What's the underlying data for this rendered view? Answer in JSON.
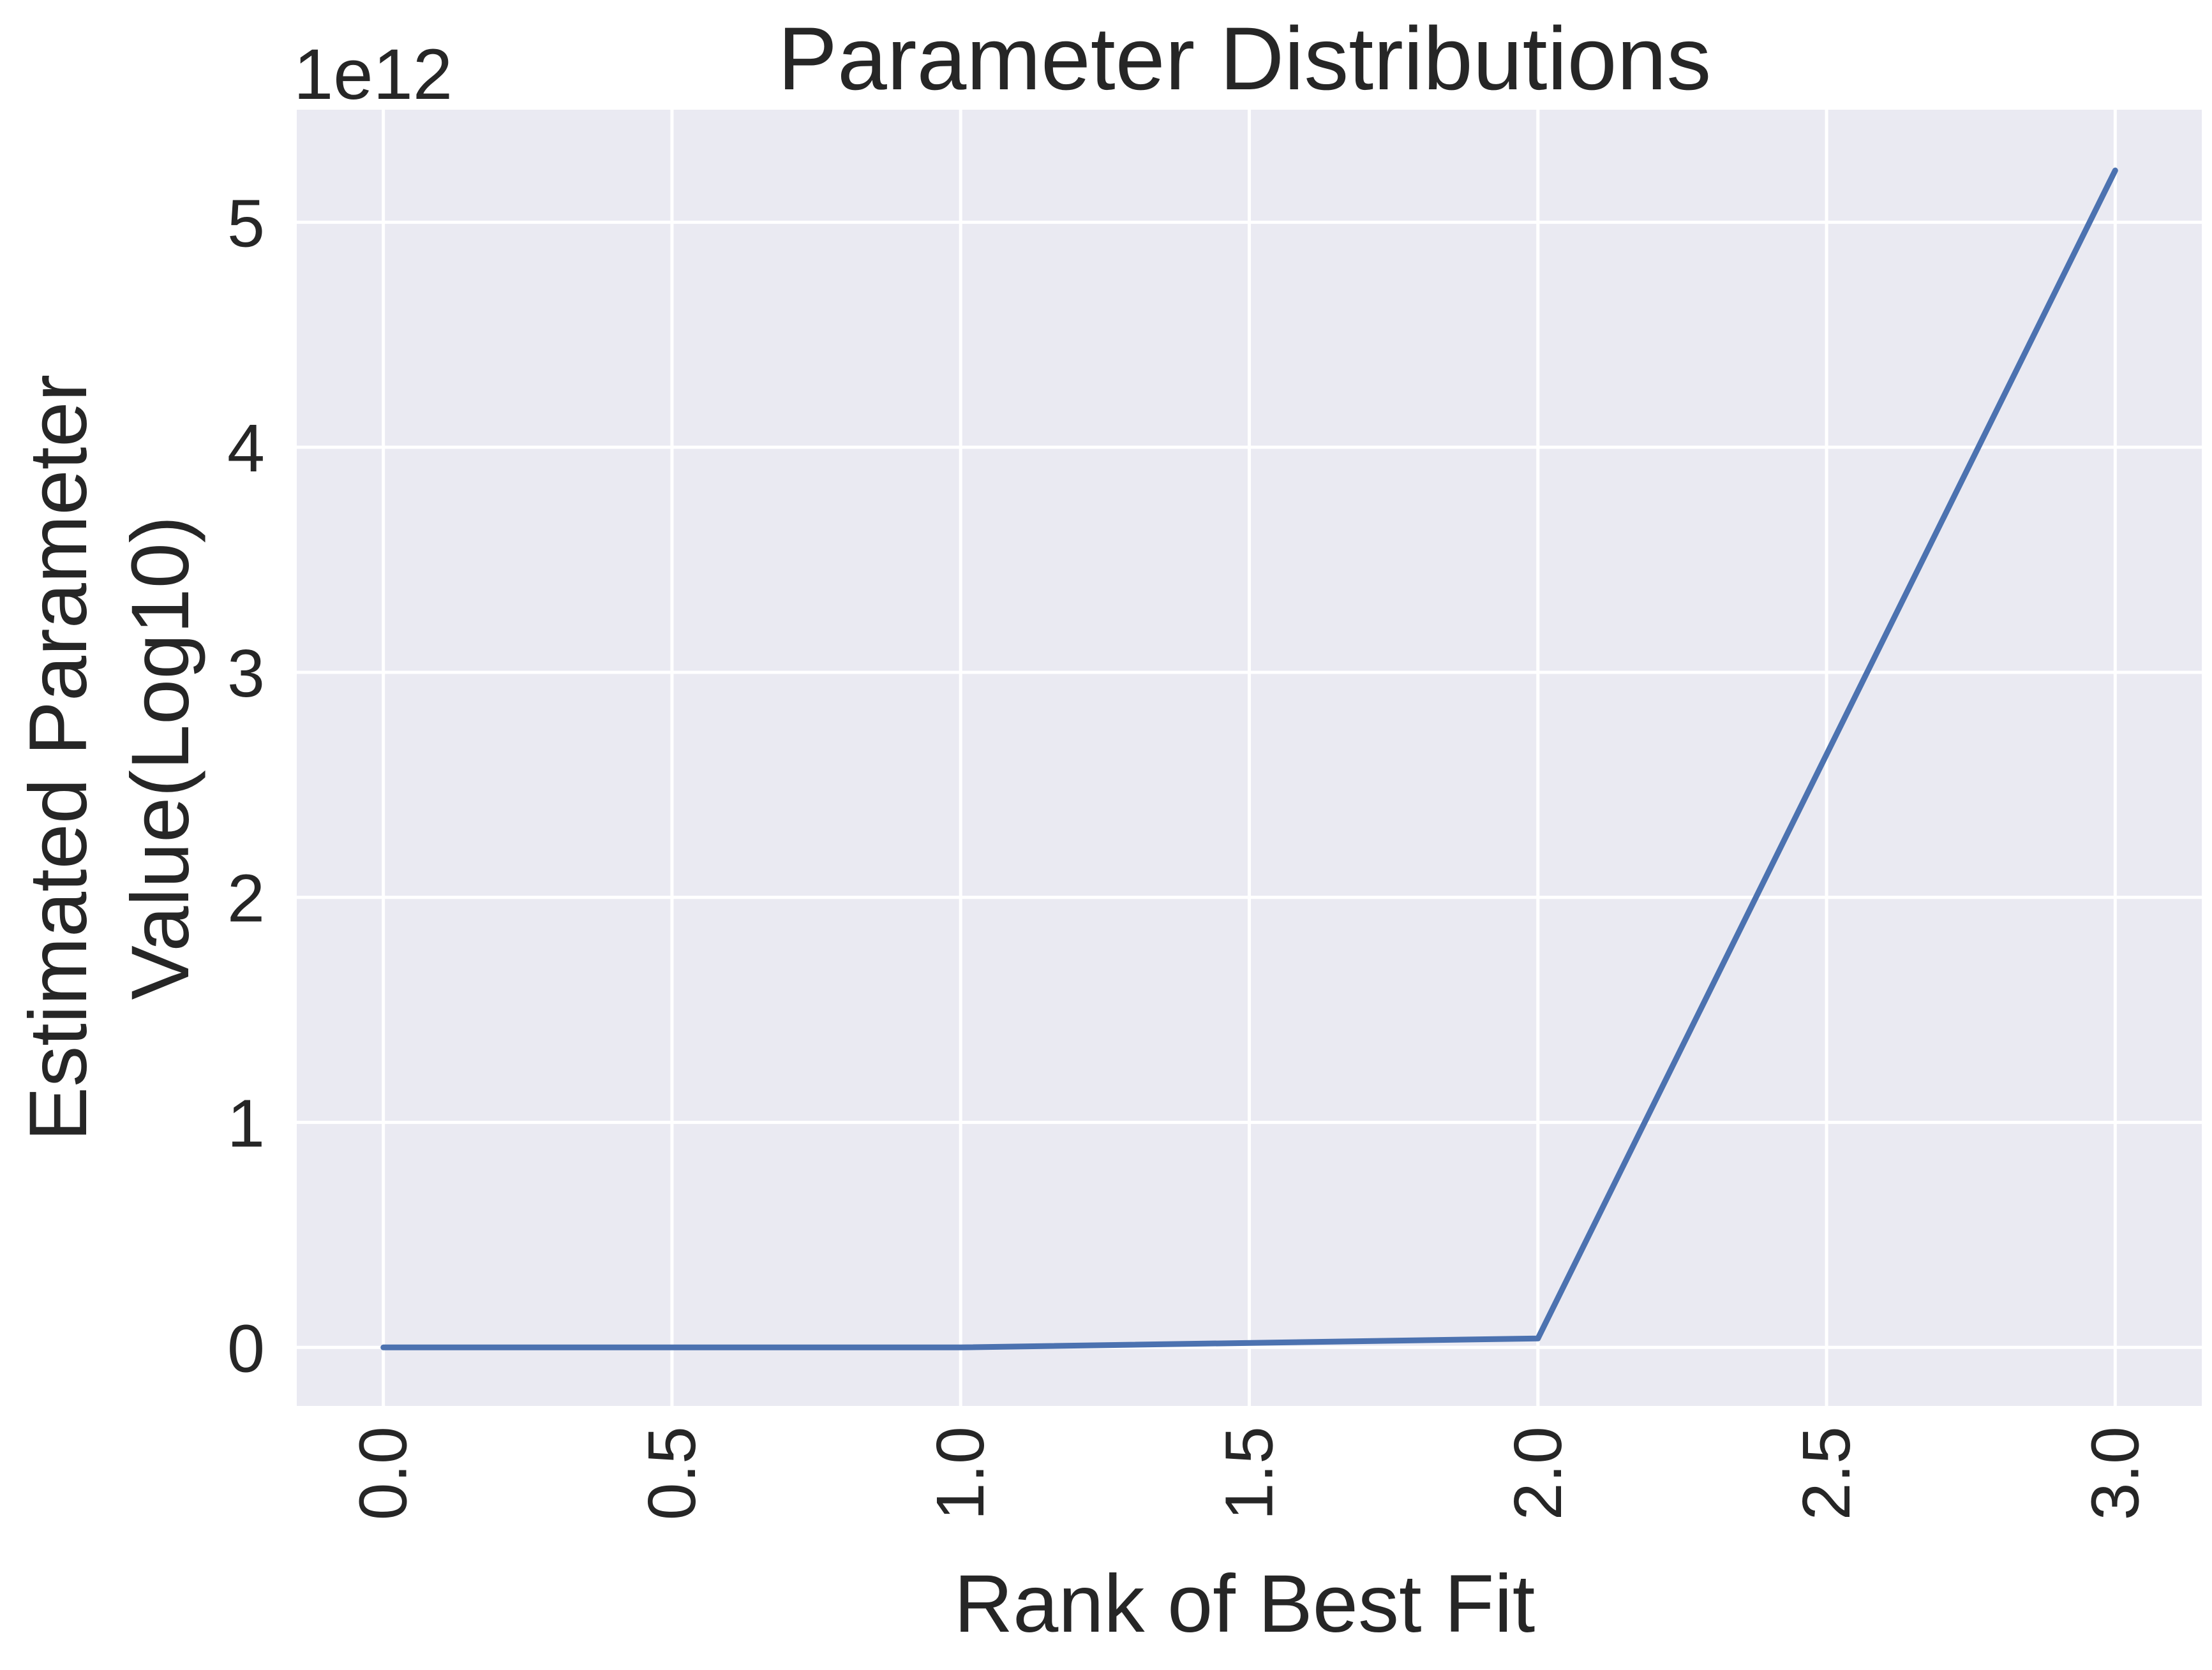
{
  "chart_data": {
    "type": "line",
    "title": "Parameter Distributions",
    "xlabel": "Rank of Best Fit",
    "ylabel_lines": [
      "Estimated Parameter",
      "Value(Log10)"
    ],
    "y_offset_label": "1e12",
    "y_scale": 1000000000000,
    "xlim": [
      -0.15,
      3.15
    ],
    "ylim": [
      -0.26,
      5.5
    ],
    "x_ticks": [
      0.0,
      0.5,
      1.0,
      1.5,
      2.0,
      2.5,
      3.0
    ],
    "x_tick_labels": [
      "0.0",
      "0.5",
      "1.0",
      "1.5",
      "2.0",
      "2.5",
      "3.0"
    ],
    "y_ticks": [
      0,
      1,
      2,
      3,
      4,
      5
    ],
    "y_tick_labels": [
      "0",
      "1",
      "2",
      "3",
      "4",
      "5"
    ],
    "grid": true,
    "legend": "none",
    "colors": {
      "background": "#EAEAF2",
      "grid": "#FFFFFF",
      "line": "#4C72B0",
      "text": "#262626"
    },
    "series": [
      {
        "x": [
          0,
          1,
          2,
          3
        ],
        "values": [
          0.0,
          0.0,
          0.04,
          5.23
        ]
      }
    ]
  }
}
